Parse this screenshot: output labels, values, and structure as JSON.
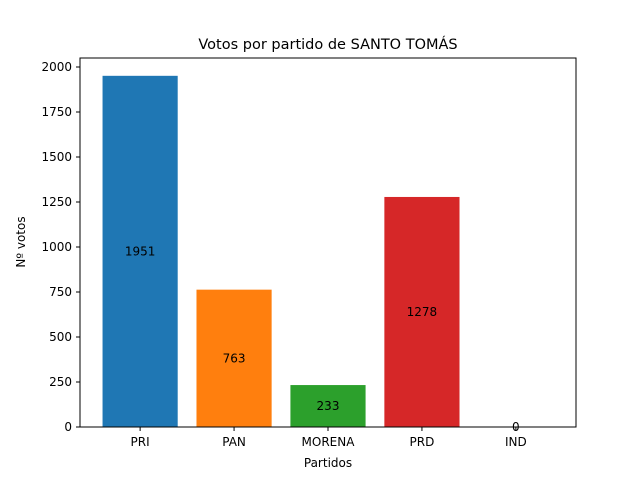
{
  "chart_data": {
    "type": "bar",
    "title": "Votos por partido de SANTO TOMÁS",
    "xlabel": "Partidos",
    "ylabel": "Nº votos",
    "categories": [
      "PRI",
      "PAN",
      "MORENA",
      "PRD",
      "IND"
    ],
    "values": [
      1951,
      763,
      233,
      1278,
      0
    ],
    "data_labels": [
      "1951",
      "763",
      "233",
      "1278",
      "0"
    ],
    "colors": [
      "#1f77b4",
      "#ff7f0e",
      "#2ca02c",
      "#d62728",
      "#9467bd"
    ],
    "ylim": [
      0,
      2050
    ],
    "yticks": [
      0,
      250,
      500,
      750,
      1000,
      1250,
      1500,
      1750,
      2000
    ],
    "grid": false,
    "legend": "none"
  }
}
